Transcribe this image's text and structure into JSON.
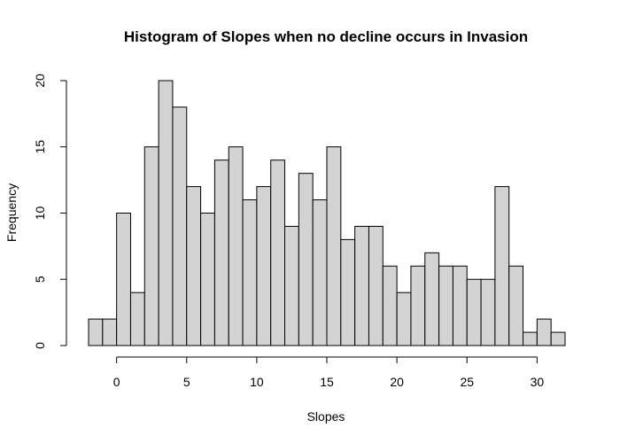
{
  "chart_data": {
    "type": "bar",
    "title": "Histogram of Slopes when no decline occurs in Invasion",
    "xlabel": "Slopes",
    "ylabel": "Frequency",
    "bin_width": 1,
    "bin_edges_start": -2,
    "bins": [
      {
        "start": -2,
        "end": -1,
        "count": 2
      },
      {
        "start": -1,
        "end": 0,
        "count": 2
      },
      {
        "start": 0,
        "end": 1,
        "count": 10
      },
      {
        "start": 1,
        "end": 2,
        "count": 4
      },
      {
        "start": 2,
        "end": 3,
        "count": 15
      },
      {
        "start": 3,
        "end": 4,
        "count": 20
      },
      {
        "start": 4,
        "end": 5,
        "count": 18
      },
      {
        "start": 5,
        "end": 6,
        "count": 12
      },
      {
        "start": 6,
        "end": 7,
        "count": 10
      },
      {
        "start": 7,
        "end": 8,
        "count": 14
      },
      {
        "start": 8,
        "end": 9,
        "count": 15
      },
      {
        "start": 9,
        "end": 10,
        "count": 11
      },
      {
        "start": 10,
        "end": 11,
        "count": 12
      },
      {
        "start": 11,
        "end": 12,
        "count": 14
      },
      {
        "start": 12,
        "end": 13,
        "count": 9
      },
      {
        "start": 13,
        "end": 14,
        "count": 13
      },
      {
        "start": 14,
        "end": 15,
        "count": 11
      },
      {
        "start": 15,
        "end": 16,
        "count": 15
      },
      {
        "start": 16,
        "end": 17,
        "count": 8
      },
      {
        "start": 17,
        "end": 18,
        "count": 9
      },
      {
        "start": 18,
        "end": 19,
        "count": 9
      },
      {
        "start": 19,
        "end": 20,
        "count": 6
      },
      {
        "start": 20,
        "end": 21,
        "count": 4
      },
      {
        "start": 21,
        "end": 22,
        "count": 6
      },
      {
        "start": 22,
        "end": 23,
        "count": 7
      },
      {
        "start": 23,
        "end": 24,
        "count": 6
      },
      {
        "start": 24,
        "end": 25,
        "count": 6
      },
      {
        "start": 25,
        "end": 26,
        "count": 5
      },
      {
        "start": 26,
        "end": 27,
        "count": 5
      },
      {
        "start": 27,
        "end": 28,
        "count": 12
      },
      {
        "start": 28,
        "end": 29,
        "count": 6
      },
      {
        "start": 29,
        "end": 30,
        "count": 1
      },
      {
        "start": 30,
        "end": 31,
        "count": 2
      },
      {
        "start": 31,
        "end": 32,
        "count": 1
      }
    ],
    "xlim": [
      -2,
      32
    ],
    "ylim": [
      0,
      20
    ],
    "x_ticks": [
      0,
      5,
      10,
      15,
      20,
      25,
      30
    ],
    "y_ticks": [
      0,
      5,
      10,
      15,
      20
    ],
    "x_tick_labels": [
      "0",
      "5",
      "10",
      "15",
      "20",
      "25",
      "30"
    ],
    "y_tick_labels": [
      "0",
      "5",
      "10",
      "15",
      "20"
    ],
    "grid": false,
    "legend": "none",
    "colors": {
      "bar_fill": "#d3d3d3",
      "bar_stroke": "#000000"
    }
  }
}
